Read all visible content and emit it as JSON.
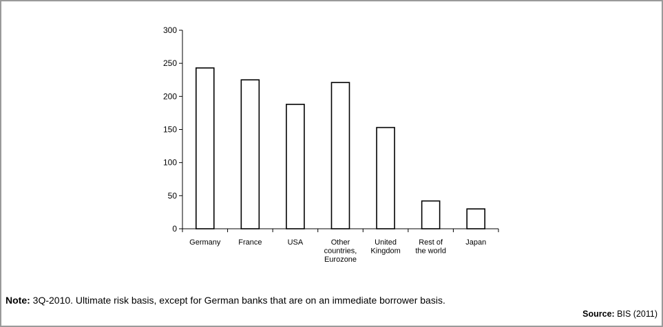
{
  "chart_data": {
    "type": "bar",
    "categories": [
      [
        "Germany"
      ],
      [
        "France"
      ],
      [
        "USA"
      ],
      [
        "Other",
        "countries,",
        "Eurozone"
      ],
      [
        "United",
        "Kingdom"
      ],
      [
        "Rest of",
        "the world"
      ],
      [
        "Japan"
      ]
    ],
    "values": [
      243,
      225,
      188,
      221,
      153,
      42,
      30
    ],
    "ylim": [
      0,
      300
    ],
    "yticks": [
      0,
      50,
      100,
      150,
      200,
      250,
      300
    ],
    "grid": false,
    "bar_fill": "#ffffff",
    "bar_stroke": "#000000"
  },
  "note": {
    "label": "Note:",
    "text": " 3Q-2010. Ultimate risk basis, except for German banks that are on an immediate borrower basis."
  },
  "source": {
    "label": "Source:",
    "text": " BIS (2011)"
  }
}
